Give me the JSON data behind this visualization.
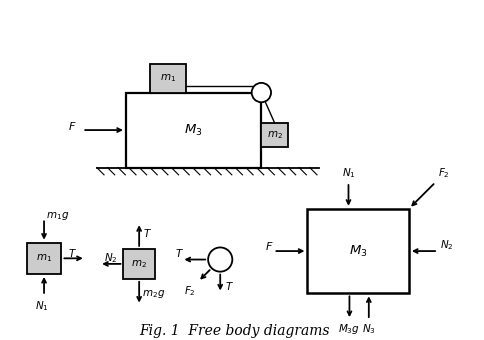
{
  "title": "Fig. 1  Free body diagrams",
  "title_fontsize": 10,
  "bg_color": "#ffffff",
  "box_color": "#cccccc",
  "line_color": "#000000",
  "fig_width": 4.84,
  "fig_height": 3.4,
  "xlim": [
    0,
    10
  ],
  "ylim": [
    0,
    7
  ]
}
